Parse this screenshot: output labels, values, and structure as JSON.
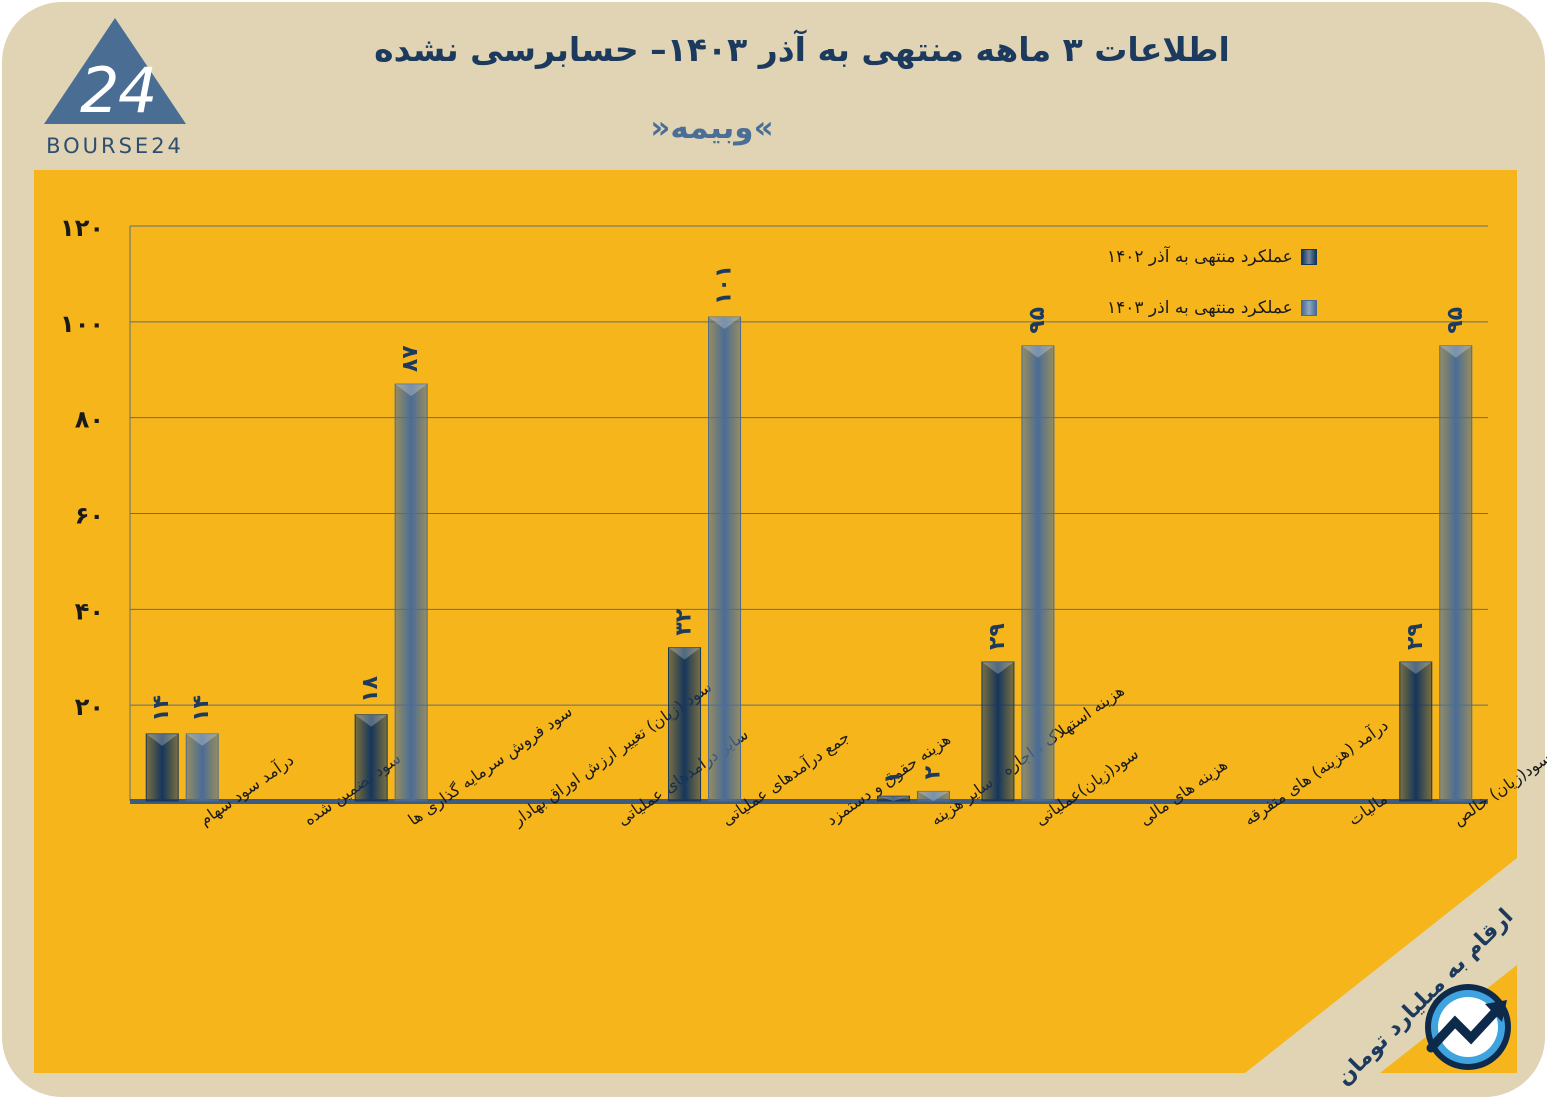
{
  "title": "اطلاعات ۳ ماهه منتهی به آذر  ۱۴۰۳– حسابرسی نشده",
  "subtitle": "»وبیمه«",
  "logo": {
    "text": "BOURSE24"
  },
  "unit_note": "ارقام به میلیارد تومان",
  "colors": {
    "card": "#e0d4b5",
    "panel": "#f6b51a",
    "series1402": "#16365c",
    "series1403": "#4a6c96",
    "title": "#1c3a5e"
  },
  "chart_data": {
    "type": "bar",
    "categories": [
      "درآمد سود سهام",
      "سود تضمین شده",
      "سود فروش سرمایه گذاری ها",
      "سود (زیان) تغییر ارزش اوراق بهادار",
      "سایر درامدهای عملیاتی",
      "جمع درآمدهای عملیاتی",
      "هزینه حقوق و دستمزد",
      "هزینه استهلاک ، اجاره ، سایر هزینه",
      "سود(زیان)عملیاتی",
      "هزینه های مالی",
      "درآمد (هزینه) های متفرقه",
      "مالیات",
      "سود(زیان) خالص"
    ],
    "series": [
      {
        "name": "عملکرد منتهی به آذر ۱۴۰۲",
        "values": [
          14,
          null,
          18,
          null,
          null,
          32,
          null,
          1,
          29,
          null,
          null,
          null,
          29
        ],
        "labels": [
          "۱۴",
          "",
          "۱۸",
          "",
          "",
          "۳۲",
          "",
          "۱",
          "۲۹",
          "",
          "",
          "",
          "۲۹"
        ]
      },
      {
        "name": "عملکرد منتهی به اذر ۱۴۰۳",
        "values": [
          14,
          null,
          87,
          null,
          null,
          101,
          null,
          2,
          95,
          null,
          null,
          null,
          95
        ],
        "labels": [
          "۱۴",
          "",
          "۸۷",
          "",
          "",
          "۱۰۱",
          "",
          "۲",
          "۹۵",
          "",
          "",
          "",
          "۹۵"
        ]
      }
    ],
    "yticks": [
      20,
      40,
      60,
      80,
      100,
      120
    ],
    "ytick_labels": [
      "۲۰",
      "۴۰",
      "۶۰",
      "۸۰",
      "۱۰۰",
      "۱۲۰"
    ],
    "ylim": [
      0,
      120
    ],
    "grid": true,
    "legend_position": "top-right"
  }
}
